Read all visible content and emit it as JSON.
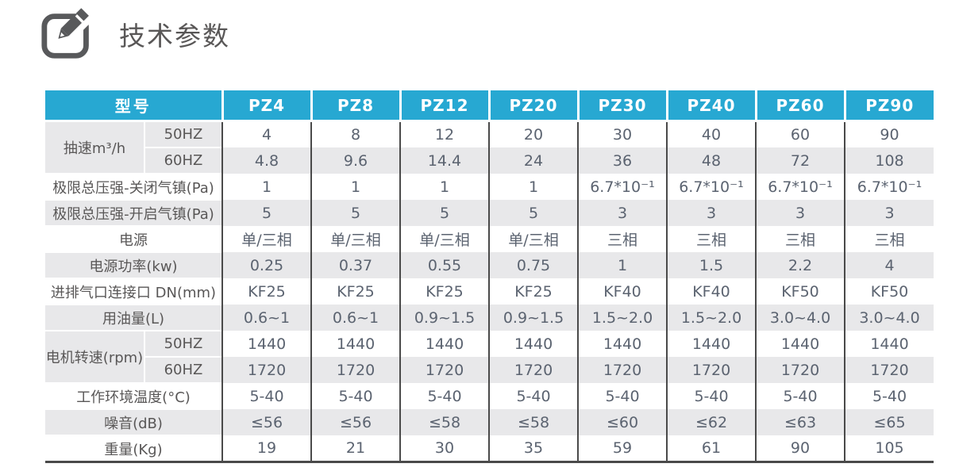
{
  "header": {
    "icon": "edit-compose-icon",
    "title": "技术参数"
  },
  "colors": {
    "accent_blue": "#27a8d2",
    "stripe_gray": "#e8e8ea",
    "divider_dark": "#4a4a4a",
    "label_text": "#595757",
    "value_text": "#5b6370",
    "icon_gray": "#58595b"
  },
  "table": {
    "model_header": "型号",
    "models": [
      "PZ4",
      "PZ8",
      "PZ12",
      "PZ20",
      "PZ30",
      "PZ40",
      "PZ60",
      "PZ90"
    ],
    "rows": [
      {
        "type": "group-start",
        "label": "抽速m³/h",
        "sub": "50HZ",
        "values": [
          "4",
          "8",
          "12",
          "20",
          "30",
          "40",
          "60",
          "90"
        ]
      },
      {
        "type": "group-cont",
        "sub": "60HZ",
        "values": [
          "4.8",
          "9.6",
          "14.4",
          "24",
          "36",
          "48",
          "72",
          "108"
        ]
      },
      {
        "type": "full",
        "label": "极限总压强-关闭气镇(Pa)",
        "values": [
          "1",
          "1",
          "1",
          "1",
          "6.7*10⁻¹",
          "6.7*10⁻¹",
          "6.7*10⁻¹",
          "6.7*10⁻¹"
        ]
      },
      {
        "type": "full",
        "label": "极限总压强-开启气镇(Pa)",
        "values": [
          "5",
          "5",
          "5",
          "5",
          "3",
          "3",
          "3",
          "3"
        ]
      },
      {
        "type": "full",
        "label": "电源",
        "values": [
          "单/三相",
          "单/三相",
          "单/三相",
          "单/三相",
          "三相",
          "三相",
          "三相",
          "三相"
        ]
      },
      {
        "type": "full",
        "label": "电源功率(kw)",
        "values": [
          "0.25",
          "0.37",
          "0.55",
          "0.75",
          "1",
          "1.5",
          "2.2",
          "4"
        ]
      },
      {
        "type": "full",
        "label": "进排气口连接口 DN(mm)",
        "values": [
          "KF25",
          "KF25",
          "KF25",
          "KF25",
          "KF40",
          "KF40",
          "KF50",
          "KF50"
        ]
      },
      {
        "type": "full",
        "label": "用油量(L)",
        "values": [
          "0.6~1",
          "0.6~1",
          "0.9~1.5",
          "0.9~1.5",
          "1.5~2.0",
          "1.5~2.0",
          "3.0~4.0",
          "3.0~4.0"
        ]
      },
      {
        "type": "group-start",
        "label": "电机转速(rpm)",
        "sub": "50HZ",
        "values": [
          "1440",
          "1440",
          "1440",
          "1440",
          "1440",
          "1440",
          "1440",
          "1440"
        ]
      },
      {
        "type": "group-cont",
        "sub": "60HZ",
        "values": [
          "1720",
          "1720",
          "1720",
          "1720",
          "1720",
          "1720",
          "1720",
          "1720"
        ]
      },
      {
        "type": "full",
        "label": "工作环境温度(°C)",
        "values": [
          "5-40",
          "5-40",
          "5-40",
          "5-40",
          "5-40",
          "5-40",
          "5-40",
          "5-40"
        ]
      },
      {
        "type": "full",
        "label": "噪音(dB)",
        "values": [
          "≤56",
          "≤56",
          "≤58",
          "≤58",
          "≤60",
          "≤62",
          "≤63",
          "≤65"
        ]
      },
      {
        "type": "full",
        "label": "重量(Kg)",
        "values": [
          "19",
          "21",
          "30",
          "35",
          "59",
          "61",
          "90",
          "105"
        ]
      }
    ]
  }
}
